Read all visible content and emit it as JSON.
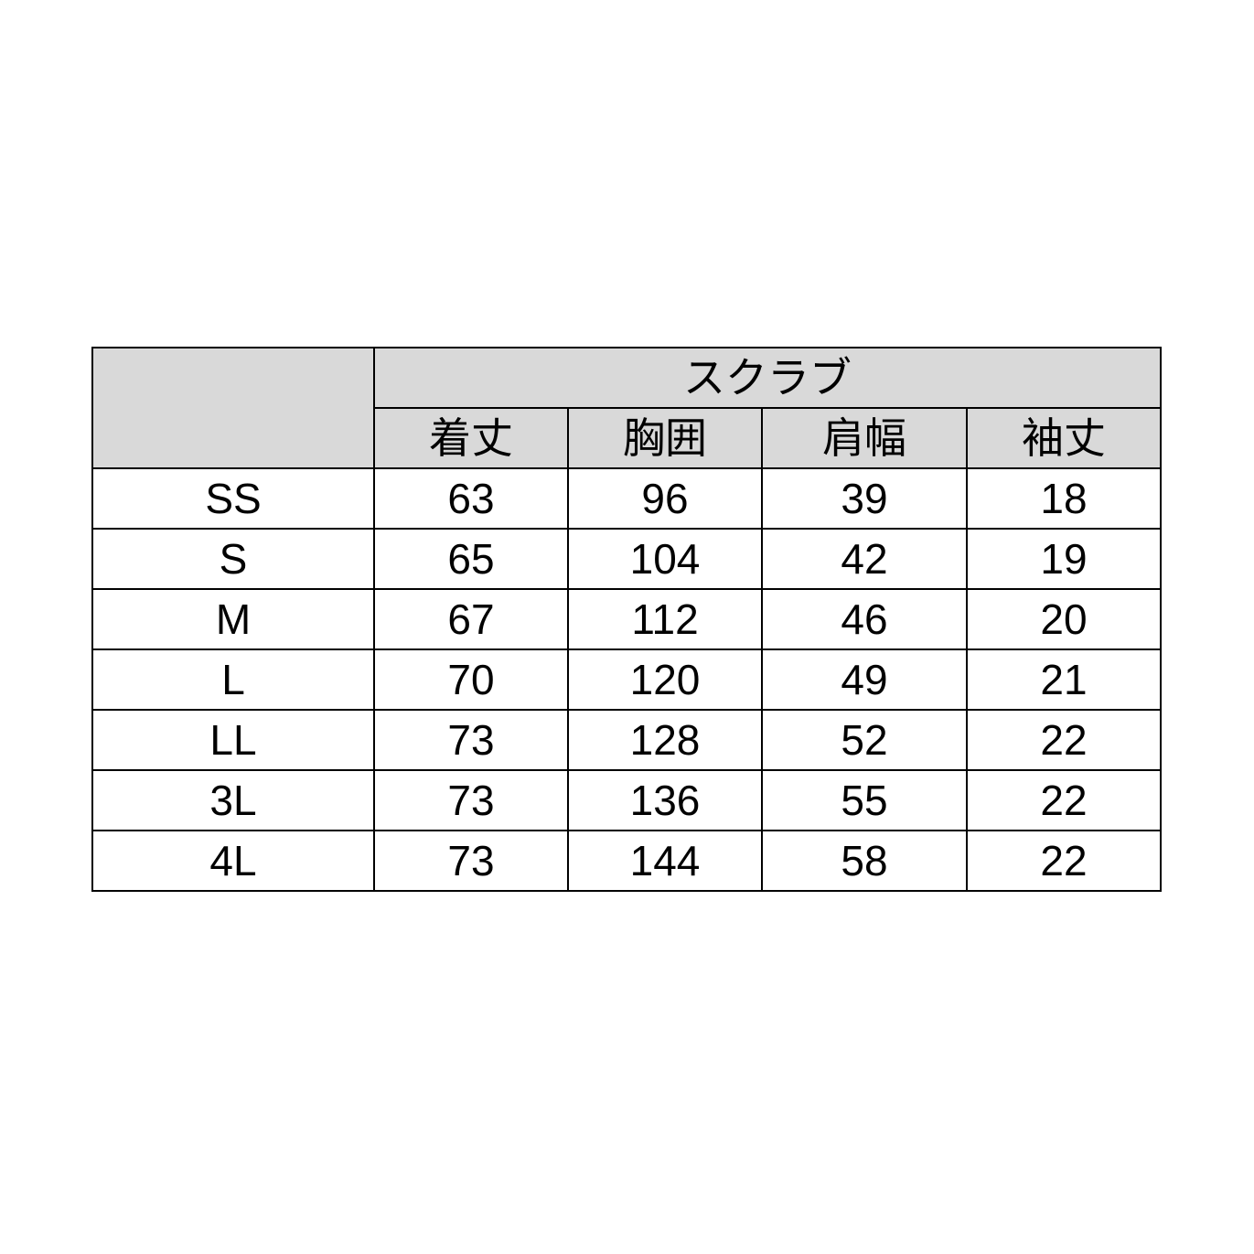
{
  "table": {
    "group_header": "スクラブ",
    "columns": [
      "着丈",
      "胸囲",
      "肩幅",
      "袖丈"
    ],
    "rows": [
      {
        "size": "SS",
        "values": [
          "63",
          "96",
          "39",
          "18"
        ]
      },
      {
        "size": "S",
        "values": [
          "65",
          "104",
          "42",
          "19"
        ]
      },
      {
        "size": "M",
        "values": [
          "67",
          "112",
          "46",
          "20"
        ]
      },
      {
        "size": "L",
        "values": [
          "70",
          "120",
          "49",
          "21"
        ]
      },
      {
        "size": "LL",
        "values": [
          "73",
          "128",
          "52",
          "22"
        ]
      },
      {
        "size": "3L",
        "values": [
          "73",
          "136",
          "55",
          "22"
        ]
      },
      {
        "size": "4L",
        "values": [
          "73",
          "144",
          "58",
          "22"
        ]
      }
    ],
    "header_color": "#d9d9d9"
  }
}
